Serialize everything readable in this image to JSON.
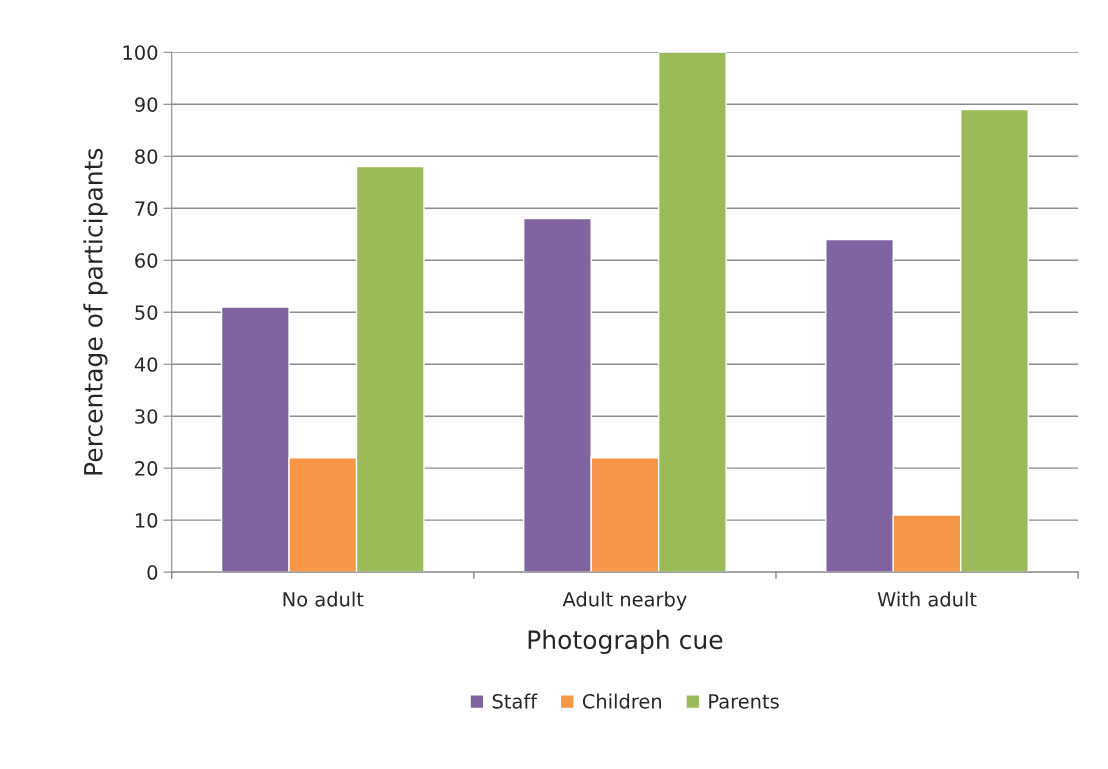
{
  "chart_data": {
    "type": "bar",
    "xlabel": "Photograph cue",
    "ylabel": "Percentage of participants",
    "categories": [
      "No adult",
      "Adult nearby",
      "With adult"
    ],
    "series": [
      {
        "name": "Staff",
        "color": "#8064a2",
        "values": [
          51,
          68,
          64
        ]
      },
      {
        "name": "Children",
        "color": "#f79646",
        "values": [
          22,
          22,
          11
        ]
      },
      {
        "name": "Parents",
        "color": "#9bbb59",
        "values": [
          78,
          100,
          89
        ]
      }
    ],
    "ylim": [
      0,
      100
    ],
    "yticks": [
      0,
      10,
      20,
      30,
      40,
      50,
      60,
      70,
      80,
      90,
      100
    ],
    "grid": "y",
    "legend": "bottom"
  }
}
